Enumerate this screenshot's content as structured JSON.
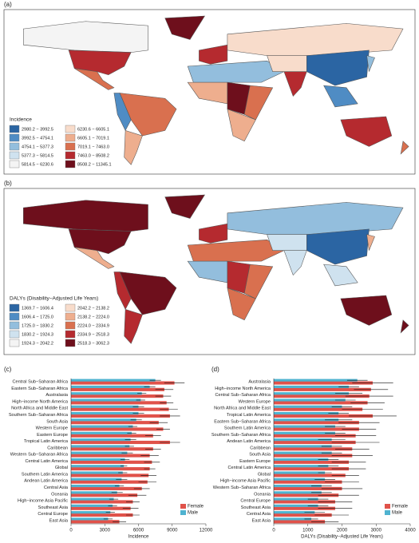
{
  "map_a": {
    "panel": "(a)",
    "legend_title": "Incidence",
    "bins": [
      {
        "label": "2980.2 − 3992.5",
        "color": "#2b65a3"
      },
      {
        "label": "3992.5 − 4754.1",
        "color": "#4f8cc4"
      },
      {
        "label": "4754.1 − 5377.3",
        "color": "#93bedd"
      },
      {
        "label": "5377.3 − 5814.5",
        "color": "#cfe2ef"
      },
      {
        "label": "5814.5 − 6230.6",
        "color": "#f4f4f4"
      },
      {
        "label": "6230.6 − 6605.1",
        "color": "#f8dccb"
      },
      {
        "label": "6605.1 − 7019.1",
        "color": "#eeae8e"
      },
      {
        "label": "7019.1 − 7463.0",
        "color": "#d9704f"
      },
      {
        "label": "7463.0 − 8508.2",
        "color": "#b52a2f"
      },
      {
        "label": "8508.2 − 11345.1",
        "color": "#6e0f1c"
      }
    ]
  },
  "map_b": {
    "panel": "(b)",
    "legend_title": "DALYs (Disability−Adjusted Life Years)",
    "bins": [
      {
        "label": "1369.7 − 1606.4",
        "color": "#2b65a3"
      },
      {
        "label": "1606.4 − 1725.0",
        "color": "#4f8cc4"
      },
      {
        "label": "1725.0 − 1830.2",
        "color": "#93bedd"
      },
      {
        "label": "1830.2 − 1924.3",
        "color": "#cfe2ef"
      },
      {
        "label": "1924.3 − 2042.2",
        "color": "#f4f4f4"
      },
      {
        "label": "2042.2 − 2138.2",
        "color": "#f8dccb"
      },
      {
        "label": "2138.2 − 2224.0",
        "color": "#eeae8e"
      },
      {
        "label": "2224.0 − 2334.9",
        "color": "#d9704f"
      },
      {
        "label": "2334.9 − 2518.3",
        "color": "#b52a2f"
      },
      {
        "label": "2518.3 − 3062.3",
        "color": "#6e0f1c"
      }
    ]
  },
  "chart_data": [
    {
      "type": "bar",
      "panel": "(c)",
      "xlabel": "Incidence",
      "categories": [
        "Central Sub−Saharan Africa",
        "Eastern Sub−Saharan Africa",
        "Australasia",
        "High−income North America",
        "North Africa and Middle East",
        "Southern Sub−Saharan Africa",
        "South Asia",
        "Western Europe",
        "Eastern Europe",
        "Tropical Latin America",
        "Caribbean",
        "Western Sub−Saharan Africa",
        "Central Latin America",
        "Global",
        "Southern Latin America",
        "Andean Latin America",
        "Central Asia",
        "Oceania",
        "High−income Asia Pacific",
        "Southeast Asia",
        "Central Europe",
        "East Asia"
      ],
      "series": [
        {
          "name": "Female",
          "color": "#e0524a",
          "values": [
            9200,
            8300,
            8200,
            8500,
            8700,
            8800,
            7800,
            8200,
            7300,
            8800,
            7300,
            7000,
            7200,
            7000,
            6900,
            6800,
            6300,
            5900,
            5500,
            5300,
            5500,
            4300
          ],
          "errors": [
            900,
            800,
            700,
            600,
            800,
            900,
            800,
            600,
            700,
            900,
            700,
            800,
            700,
            500,
            700,
            800,
            700,
            800,
            600,
            700,
            600,
            600
          ]
        },
        {
          "name": "Male",
          "color": "#4fb3d0",
          "values": [
            7500,
            7000,
            6300,
            6200,
            6000,
            6000,
            5800,
            5500,
            5400,
            5300,
            5200,
            5000,
            4800,
            4700,
            4600,
            4500,
            4300,
            4100,
            3800,
            3700,
            3500,
            3300
          ],
          "errors": [
            500,
            500,
            400,
            400,
            500,
            500,
            500,
            400,
            400,
            500,
            400,
            500,
            400,
            300,
            400,
            500,
            400,
            500,
            400,
            400,
            400,
            400
          ]
        }
      ],
      "xlim": [
        0,
        12000
      ],
      "xticks": [
        0,
        3000,
        6000,
        9000,
        12000
      ]
    },
    {
      "type": "bar",
      "panel": "(d)",
      "xlabel": "DALYs (Disability−Adjusted Life Years)",
      "categories": [
        "Australasia",
        "High−income North America",
        "Central Sub−Saharan Africa",
        "Western Europe",
        "North Africa and Middle East",
        "Tropical Latin America",
        "Eastern Sub−Saharan Africa",
        "Southern Latin America",
        "Southern Sub−Saharan Africa",
        "Andean Latin America",
        "Caribbean",
        "South Asia",
        "Eastern Europe",
        "Central Latin America",
        "Global",
        "High−income Asia Pacific",
        "Western Sub−Saharan Africa",
        "Oceania",
        "Central Europe",
        "Southeast Asia",
        "Central Asia",
        "East Asia"
      ],
      "series": [
        {
          "name": "Female",
          "color": "#e0524a",
          "values": [
            2900,
            2850,
            2800,
            2750,
            2600,
            2900,
            2500,
            2500,
            2400,
            2400,
            2300,
            2300,
            2200,
            2200,
            2100,
            2000,
            2000,
            1900,
            1800,
            1800,
            1700,
            1500
          ],
          "errors": [
            600,
            500,
            700,
            500,
            600,
            700,
            600,
            500,
            600,
            700,
            500,
            600,
            500,
            500,
            400,
            500,
            600,
            600,
            500,
            500,
            500,
            400
          ]
        },
        {
          "name": "Male",
          "color": "#4fb3d0",
          "values": [
            2450,
            2200,
            2200,
            2100,
            2000,
            1900,
            1900,
            1800,
            1800,
            1700,
            1700,
            1700,
            1600,
            1600,
            1500,
            1500,
            1400,
            1400,
            1300,
            1300,
            1200,
            1100
          ],
          "errors": [
            300,
            300,
            400,
            300,
            300,
            300,
            400,
            300,
            300,
            400,
            300,
            300,
            300,
            300,
            200,
            300,
            300,
            300,
            300,
            300,
            300,
            200
          ]
        }
      ],
      "xlim": [
        0,
        4000
      ],
      "xticks": [
        0,
        1000,
        2000,
        3000,
        4000
      ]
    }
  ]
}
